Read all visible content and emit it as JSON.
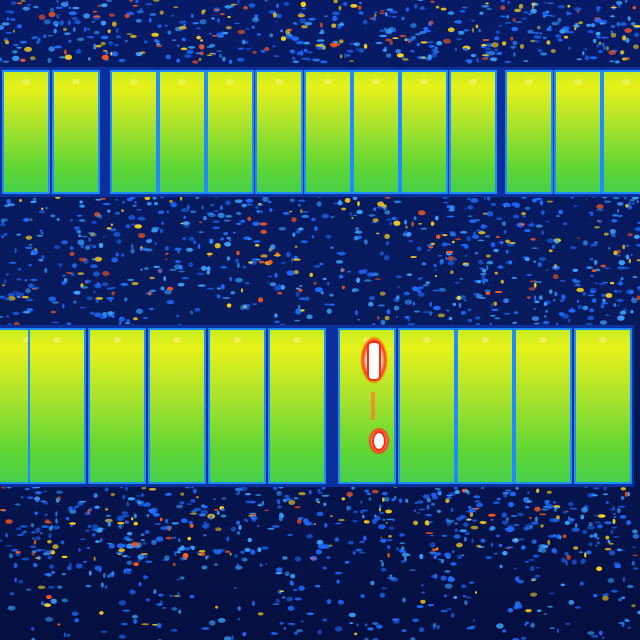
{
  "palette": {
    "background_cold": "#05124a",
    "background_mid": "#0a2a8c",
    "vegetation_warm": "#1e6bff",
    "vegetation_hot": "#ffd21a",
    "vegetation_hotter": "#ff5a1a",
    "panel_frame": "#1d8cff",
    "panel_gap": "#0b2f9c",
    "panel_top": "#f2f21a",
    "panel_mid": "#9ee02a",
    "panel_bottom": "#2fcf3a",
    "hotspot_core": "#ffffff",
    "hotspot_edge": "#ff2a10"
  },
  "scene": {
    "subject": "thermal-image-solar-array",
    "panel_rows": 2,
    "top_row_panels": 13,
    "bottom_row_panels": 11,
    "hotspot_panel_index": 6,
    "hotspot_count": 2
  }
}
